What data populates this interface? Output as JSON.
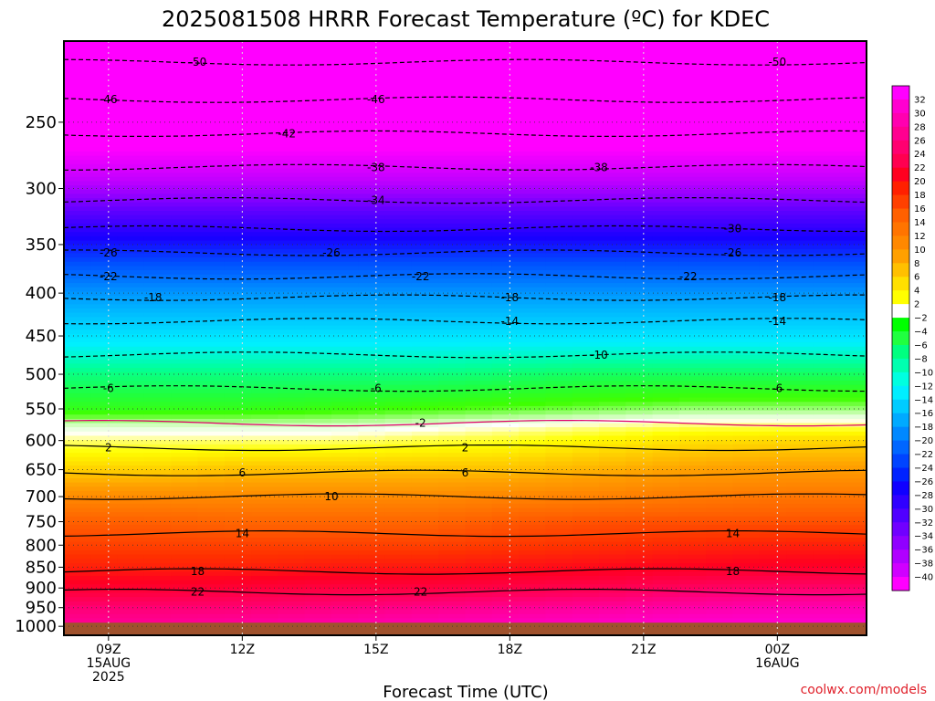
{
  "chart_data": {
    "type": "heatmap",
    "title": "2025081508 HRRR Forecast Temperature (ºC) for KDEC",
    "xlabel": "Forecast Time (UTC)",
    "ylabel": "",
    "credit": "coolwx.com/models",
    "y_axis": {
      "scale": "log",
      "inverted": true,
      "ticks": [
        250,
        300,
        350,
        400,
        450,
        500,
        550,
        600,
        650,
        700,
        750,
        800,
        850,
        900,
        950,
        1000
      ],
      "range_hpa": [
        200,
        1025
      ]
    },
    "x_axis": {
      "range_hours": [
        8,
        26
      ],
      "ticks": [
        {
          "hour": 9,
          "lines": [
            "09Z",
            "15AUG",
            "2025"
          ]
        },
        {
          "hour": 12,
          "lines": [
            "12Z"
          ]
        },
        {
          "hour": 15,
          "lines": [
            "15Z"
          ]
        },
        {
          "hour": 18,
          "lines": [
            "18Z"
          ]
        },
        {
          "hour": 21,
          "lines": [
            "21Z"
          ]
        },
        {
          "hour": 24,
          "lines": [
            "00Z",
            "16AUG"
          ]
        }
      ]
    },
    "grid": true,
    "surface_color": "#a0522d",
    "colorbar": {
      "position": "right",
      "labels": [
        "32",
        "30",
        "28",
        "26",
        "24",
        "22",
        "20",
        "18",
        "16",
        "14",
        "12",
        "10",
        "8",
        "6",
        "4",
        "2",
        "−2",
        "−4",
        "−6",
        "−8",
        "−10",
        "−12",
        "−14",
        "−16",
        "−18",
        "−20",
        "−22",
        "−24",
        "−26",
        "−28",
        "−30",
        "−32",
        "−34",
        "−36",
        "−38",
        "−40"
      ],
      "colors": [
        "#ff00ff",
        "#ff00d0",
        "#ff00b0",
        "#ff0090",
        "#ff0070",
        "#ff0050",
        "#ff0020",
        "#ff2000",
        "#ff4000",
        "#ff6000",
        "#ff7400",
        "#ff8800",
        "#ffa000",
        "#ffc000",
        "#ffe000",
        "#ffff00",
        "#ffffff",
        "#00ff00",
        "#20ff40",
        "#00ff80",
        "#00ffb0",
        "#00ffe0",
        "#00eeff",
        "#00ccff",
        "#00aaff",
        "#0088ff",
        "#0066ff",
        "#0044ff",
        "#0022ff",
        "#1000ff",
        "#3000ff",
        "#5000ff",
        "#7000ff",
        "#9000ff",
        "#b000ff",
        "#d000ff",
        "#ff00ff"
      ]
    },
    "temperature_profile": {
      "times": [
        8,
        10,
        12,
        14,
        16,
        18,
        20,
        22,
        24,
        26
      ],
      "pressures": [
        200,
        250,
        300,
        350,
        400,
        450,
        500,
        550,
        575,
        600,
        650,
        700,
        750,
        800,
        850,
        900,
        950,
        1000
      ],
      "values": [
        [
          -52,
          -52,
          -52,
          -52,
          -52,
          -52,
          -52,
          -52,
          -52,
          -52
        ],
        [
          -43,
          -43,
          -43,
          -43,
          -43,
          -43,
          -43,
          -43,
          -43,
          -43
        ],
        [
          -35,
          -35,
          -35,
          -35,
          -35,
          -35,
          -35,
          -35,
          -35,
          -35
        ],
        [
          -27,
          -27,
          -27,
          -27,
          -27,
          -27,
          -27,
          -27,
          -27,
          -27
        ],
        [
          -19,
          -19,
          -19,
          -19,
          -19,
          -19,
          -19,
          -19,
          -19,
          -19
        ],
        [
          -13,
          -13,
          -13,
          -13,
          -13,
          -13,
          -13,
          -13,
          -13,
          -13
        ],
        [
          -8,
          -8,
          -8,
          -8,
          -8,
          -7.5,
          -7,
          -7,
          -7,
          -7
        ],
        [
          -4.5,
          -4.5,
          -4.5,
          -4,
          -3.5,
          -3,
          -2.5,
          -2,
          -2,
          -2
        ],
        [
          -1,
          -1,
          -1,
          -1,
          -0.5,
          0,
          0.5,
          1,
          1,
          1
        ],
        [
          1,
          1,
          1,
          1,
          1.5,
          2,
          3,
          4,
          4.5,
          4.5
        ],
        [
          5,
          5,
          6,
          6,
          6,
          6,
          7,
          8,
          8.5,
          8.5
        ],
        [
          10,
          10,
          10,
          10,
          10,
          10.5,
          11,
          11.5,
          12,
          12
        ],
        [
          14,
          14,
          13.5,
          13.5,
          13.5,
          14.5,
          15,
          15,
          15,
          15
        ],
        [
          16,
          16,
          16,
          16,
          16,
          16.5,
          17,
          17.5,
          18,
          18
        ],
        [
          18,
          18,
          18,
          18.5,
          18.5,
          19,
          19.5,
          20,
          20.5,
          20.5
        ],
        [
          21,
          21,
          21.5,
          22,
          22,
          22.5,
          23,
          24,
          24.5,
          24.5
        ],
        [
          25,
          25,
          25,
          25.5,
          26,
          26.5,
          27,
          27.5,
          28,
          28
        ],
        [
          27,
          27,
          27.5,
          28,
          28.5,
          29,
          29.5,
          30,
          30,
          30
        ]
      ]
    },
    "contours": [
      {
        "label": "-50",
        "dashed": true,
        "pressure": 212,
        "label_hours": [
          11,
          24
        ]
      },
      {
        "label": "-46",
        "dashed": true,
        "pressure": 235,
        "label_hours": [
          9,
          15
        ]
      },
      {
        "label": "-42",
        "dashed": true,
        "pressure": 258,
        "label_hours": [
          13
        ]
      },
      {
        "label": "-38",
        "dashed": true,
        "pressure": 283,
        "label_hours": [
          15,
          20
        ]
      },
      {
        "label": "-34",
        "dashed": true,
        "pressure": 310,
        "label_hours": [
          15
        ]
      },
      {
        "label": "-30",
        "dashed": true,
        "pressure": 335,
        "label_hours": [
          23
        ]
      },
      {
        "label": "-26",
        "dashed": true,
        "pressure": 358,
        "label_hours": [
          9,
          14,
          23
        ]
      },
      {
        "label": "-22",
        "dashed": true,
        "pressure": 382,
        "label_hours": [
          9,
          16,
          22
        ]
      },
      {
        "label": "-18",
        "dashed": true,
        "pressure": 405,
        "label_hours": [
          10,
          18,
          24
        ]
      },
      {
        "label": "-14",
        "dashed": true,
        "pressure": 432,
        "label_hours": [
          18,
          24
        ]
      },
      {
        "label": "-10",
        "dashed": true,
        "pressure": 474,
        "label_hours": [
          20
        ]
      },
      {
        "label": "-6",
        "dashed": true,
        "pressure": 520,
        "label_hours": [
          9,
          15,
          24
        ]
      },
      {
        "label": "-2",
        "dashed": false,
        "pressure": 572,
        "label_hours": [
          16
        ]
      },
      {
        "label": "2",
        "dashed": false,
        "pressure": 612,
        "label_hours": [
          9,
          17
        ]
      },
      {
        "label": "6",
        "dashed": false,
        "pressure": 656,
        "label_hours": [
          12,
          17
        ]
      },
      {
        "label": "10",
        "dashed": false,
        "pressure": 700,
        "label_hours": [
          14
        ]
      },
      {
        "label": "14",
        "dashed": false,
        "pressure": 775,
        "label_hours": [
          12,
          23
        ]
      },
      {
        "label": "18",
        "dashed": false,
        "pressure": 860,
        "label_hours": [
          11,
          23
        ]
      },
      {
        "label": "22",
        "dashed": false,
        "pressure": 910,
        "label_hours": [
          11,
          16
        ]
      }
    ]
  }
}
